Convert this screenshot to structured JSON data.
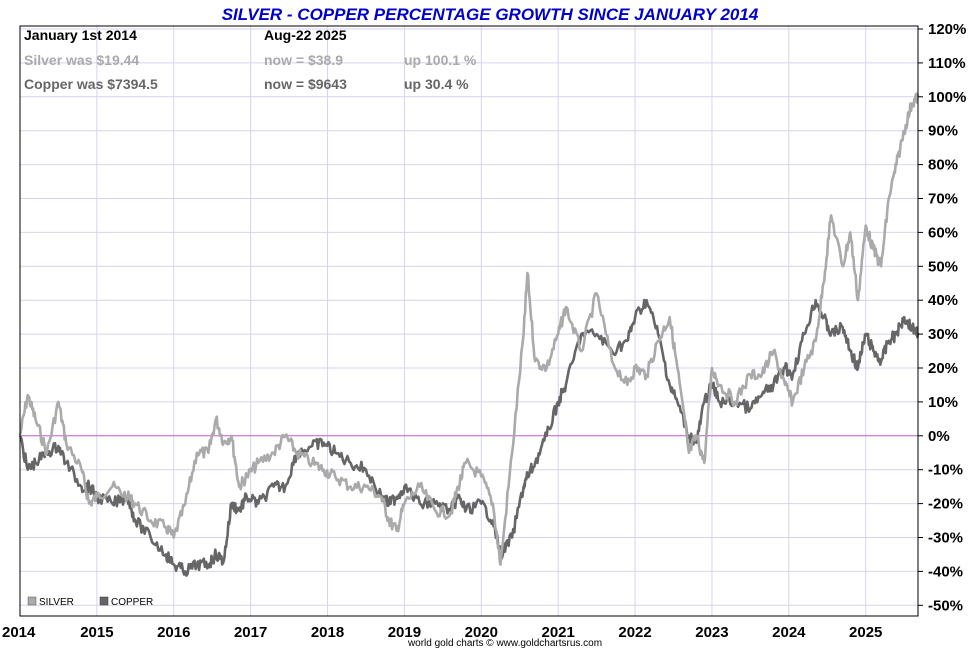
{
  "chart_data": {
    "type": "line",
    "title": "SILVER - COPPER PERCENTAGE GROWTH SINCE JANUARY 2014",
    "xlabel": "",
    "ylabel": "",
    "x_tick_labels": [
      "2014",
      "2015",
      "2016",
      "2017",
      "2018",
      "2019",
      "2020",
      "2021",
      "2022",
      "2023",
      "2024",
      "2025"
    ],
    "y_tick_labels": [
      "120%",
      "110%",
      "100%",
      "90%",
      "80%",
      "70%",
      "60%",
      "50%",
      "40%",
      "30%",
      "20%",
      "10%",
      "0%",
      "-10%",
      "-20%",
      "-30%",
      "-40%",
      "-50%"
    ],
    "ylim": [
      -50,
      120
    ],
    "xlim": [
      2014.0,
      2025.68
    ],
    "grid": true,
    "legend_position": "bottom-left",
    "zero_line_color": "#cc66cc",
    "series": [
      {
        "name": "SILVER",
        "color": "#aaaaaa",
        "x": [
          2014.0,
          2014.1,
          2014.2,
          2014.35,
          2014.5,
          2014.6,
          2014.8,
          2014.9,
          2015.0,
          2015.2,
          2015.4,
          2015.5,
          2015.7,
          2015.9,
          2016.0,
          2016.15,
          2016.3,
          2016.45,
          2016.55,
          2016.65,
          2016.75,
          2016.85,
          2016.95,
          2017.1,
          2017.3,
          2017.45,
          2017.6,
          2017.8,
          2017.95,
          2018.1,
          2018.3,
          2018.5,
          2018.7,
          2018.8,
          2018.9,
          2019.0,
          2019.2,
          2019.4,
          2019.6,
          2019.7,
          2019.8,
          2020.0,
          2020.15,
          2020.25,
          2020.4,
          2020.55,
          2020.6,
          2020.7,
          2020.85,
          2021.0,
          2021.1,
          2021.3,
          2021.5,
          2021.7,
          2021.9,
          2022.0,
          2022.15,
          2022.3,
          2022.45,
          2022.55,
          2022.7,
          2022.8,
          2022.9,
          2023.0,
          2023.1,
          2023.3,
          2023.5,
          2023.65,
          2023.8,
          2023.95,
          2024.05,
          2024.2,
          2024.35,
          2024.45,
          2024.55,
          2024.7,
          2024.8,
          2024.9,
          2025.0,
          2025.1,
          2025.2,
          2025.3,
          2025.4,
          2025.5,
          2025.6,
          2025.68
        ],
        "values": [
          0,
          12,
          5,
          -5,
          10,
          -2,
          -10,
          -20,
          -18,
          -15,
          -18,
          -20,
          -25,
          -27,
          -30,
          -20,
          -5,
          -5,
          5,
          -2,
          0,
          -15,
          -12,
          -8,
          -5,
          0,
          -5,
          -8,
          -10,
          -12,
          -15,
          -15,
          -18,
          -25,
          -28,
          -20,
          -15,
          -22,
          -23,
          -15,
          -8,
          -12,
          -20,
          -38,
          -5,
          30,
          48,
          22,
          20,
          30,
          38,
          25,
          42,
          22,
          15,
          20,
          18,
          28,
          35,
          20,
          -5,
          0,
          -8,
          20,
          15,
          10,
          18,
          18,
          25,
          15,
          10,
          20,
          28,
          45,
          65,
          50,
          60,
          40,
          62,
          55,
          50,
          70,
          80,
          90,
          98,
          100.1
        ]
      },
      {
        "name": "COPPER",
        "color": "#666666",
        "x": [
          2014.0,
          2014.1,
          2014.2,
          2014.35,
          2014.5,
          2014.6,
          2014.8,
          2014.9,
          2015.0,
          2015.2,
          2015.4,
          2015.5,
          2015.7,
          2015.9,
          2016.0,
          2016.15,
          2016.3,
          2016.45,
          2016.55,
          2016.65,
          2016.75,
          2016.85,
          2016.95,
          2017.1,
          2017.3,
          2017.45,
          2017.6,
          2017.8,
          2017.95,
          2018.1,
          2018.3,
          2018.5,
          2018.7,
          2018.8,
          2018.9,
          2019.0,
          2019.2,
          2019.4,
          2019.6,
          2019.7,
          2019.8,
          2020.0,
          2020.15,
          2020.25,
          2020.4,
          2020.55,
          2020.6,
          2020.7,
          2020.85,
          2021.0,
          2021.1,
          2021.3,
          2021.5,
          2021.7,
          2021.9,
          2022.0,
          2022.15,
          2022.3,
          2022.45,
          2022.55,
          2022.7,
          2022.8,
          2022.9,
          2023.0,
          2023.1,
          2023.3,
          2023.5,
          2023.65,
          2023.8,
          2023.95,
          2024.05,
          2024.2,
          2024.35,
          2024.45,
          2024.55,
          2024.7,
          2024.8,
          2024.9,
          2025.0,
          2025.1,
          2025.2,
          2025.3,
          2025.4,
          2025.5,
          2025.6,
          2025.68
        ],
        "values": [
          0,
          -10,
          -8,
          -5,
          -3,
          -8,
          -15,
          -15,
          -18,
          -20,
          -18,
          -25,
          -30,
          -35,
          -38,
          -40,
          -38,
          -38,
          -35,
          -37,
          -20,
          -22,
          -18,
          -20,
          -15,
          -15,
          -5,
          -3,
          -2,
          -5,
          -8,
          -10,
          -18,
          -20,
          -18,
          -15,
          -20,
          -20,
          -22,
          -18,
          -22,
          -20,
          -25,
          -35,
          -30,
          -15,
          -12,
          -8,
          0,
          10,
          15,
          30,
          30,
          25,
          28,
          35,
          40,
          30,
          15,
          10,
          0,
          -2,
          10,
          15,
          10,
          10,
          8,
          12,
          15,
          20,
          18,
          30,
          40,
          35,
          30,
          32,
          25,
          20,
          30,
          25,
          22,
          28,
          30,
          35,
          32,
          30.4
        ]
      }
    ]
  },
  "info": {
    "start_label": "January 1st 2014",
    "end_label": "Aug-22  2025",
    "silver_was": "Silver was $19.44",
    "silver_now": "now = $38.9",
    "silver_up": "up 100.1 %",
    "copper_was": "Copper was $7394.5",
    "copper_now": "now = $9643",
    "copper_up": "up 30.4 %"
  },
  "credit": "world gold charts © www.goldchartsrus.com",
  "colors": {
    "title": "#0000cc",
    "grid": "#d4d4ee",
    "silver_text": "#aaaaaa",
    "copper_text": "#666666"
  }
}
